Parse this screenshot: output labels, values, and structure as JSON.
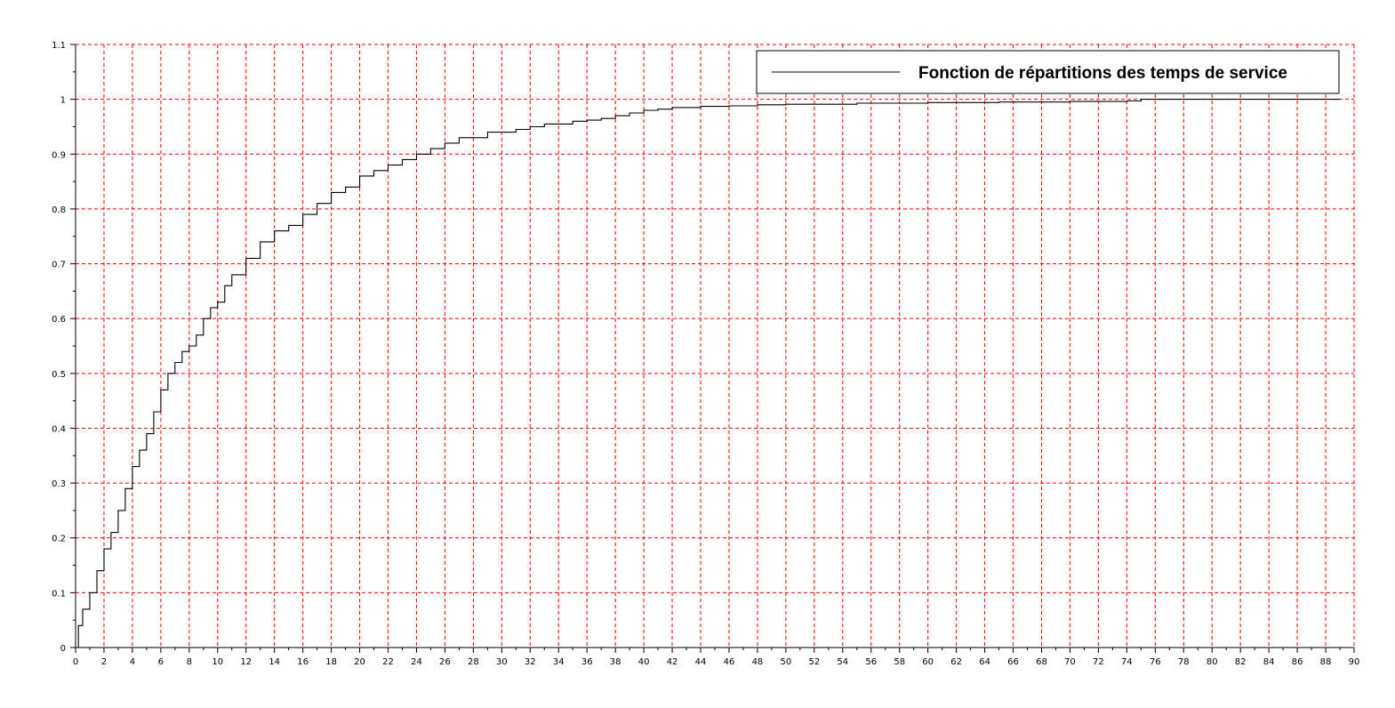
{
  "chart_data": {
    "type": "line",
    "step": true,
    "title": "",
    "xlabel": "",
    "ylabel": "",
    "xlim": [
      0,
      90
    ],
    "ylim": [
      0,
      1.1
    ],
    "xticks": [
      0,
      2,
      4,
      6,
      8,
      10,
      12,
      14,
      16,
      18,
      20,
      22,
      24,
      26,
      28,
      30,
      32,
      34,
      36,
      38,
      40,
      42,
      44,
      46,
      48,
      50,
      52,
      54,
      56,
      58,
      60,
      62,
      64,
      66,
      68,
      70,
      72,
      74,
      76,
      78,
      80,
      82,
      84,
      86,
      88,
      90
    ],
    "xtick_labels": [
      "0",
      "2",
      "4",
      "6",
      "8",
      "10",
      "12",
      "14",
      "16",
      "18",
      "20",
      "22",
      "24",
      "26",
      "28",
      "30",
      "32",
      "34",
      "36",
      "38",
      "40",
      "42",
      "44",
      "46",
      "48",
      "50",
      "52",
      "54",
      "56",
      "58",
      "60",
      "62",
      "64",
      "66",
      "68",
      "70",
      "72",
      "74",
      "76",
      "78",
      "80",
      "82",
      "84",
      "86",
      "88",
      "90"
    ],
    "yticks": [
      0,
      0.1,
      0.2,
      0.3,
      0.4,
      0.5,
      0.6,
      0.7,
      0.8,
      0.9,
      1,
      1.1
    ],
    "ytick_labels": [
      "0",
      "0.1",
      "0.2",
      "0.3",
      "0.4",
      "0.5",
      "0.6",
      "0.7",
      "0.8",
      "0.9",
      "1",
      "1.1"
    ],
    "grid": true,
    "grid_color": "#ff0000",
    "line_color": "#000000",
    "legend_position": "top-right",
    "series": [
      {
        "name": "Fonction de répartitions des temps de service",
        "x": [
          0,
          0.2,
          0.5,
          1,
          1.5,
          2,
          2.5,
          3,
          3.5,
          4,
          4.5,
          5,
          5.5,
          6,
          6.5,
          7,
          7.5,
          8,
          8.5,
          9,
          9.5,
          10,
          10.5,
          11,
          12,
          13,
          14,
          15,
          16,
          17,
          18,
          19,
          20,
          21,
          22,
          23,
          24,
          25,
          26,
          27,
          28,
          29,
          30,
          31,
          32,
          33,
          34,
          35,
          36,
          37,
          38,
          39,
          40,
          41,
          42,
          44,
          46,
          48,
          50,
          55,
          60,
          65,
          70,
          74,
          75,
          80,
          85,
          89
        ],
        "y": [
          0,
          0.04,
          0.07,
          0.1,
          0.14,
          0.18,
          0.21,
          0.25,
          0.29,
          0.33,
          0.36,
          0.39,
          0.43,
          0.47,
          0.5,
          0.52,
          0.54,
          0.55,
          0.57,
          0.6,
          0.62,
          0.63,
          0.66,
          0.68,
          0.71,
          0.74,
          0.76,
          0.77,
          0.79,
          0.81,
          0.83,
          0.84,
          0.86,
          0.87,
          0.88,
          0.89,
          0.9,
          0.91,
          0.92,
          0.93,
          0.93,
          0.94,
          0.94,
          0.945,
          0.95,
          0.955,
          0.955,
          0.96,
          0.962,
          0.965,
          0.97,
          0.975,
          0.98,
          0.982,
          0.985,
          0.987,
          0.988,
          0.99,
          0.991,
          0.993,
          0.994,
          0.995,
          0.996,
          0.997,
          1.0,
          1.0,
          1.0,
          1.0
        ]
      }
    ]
  }
}
